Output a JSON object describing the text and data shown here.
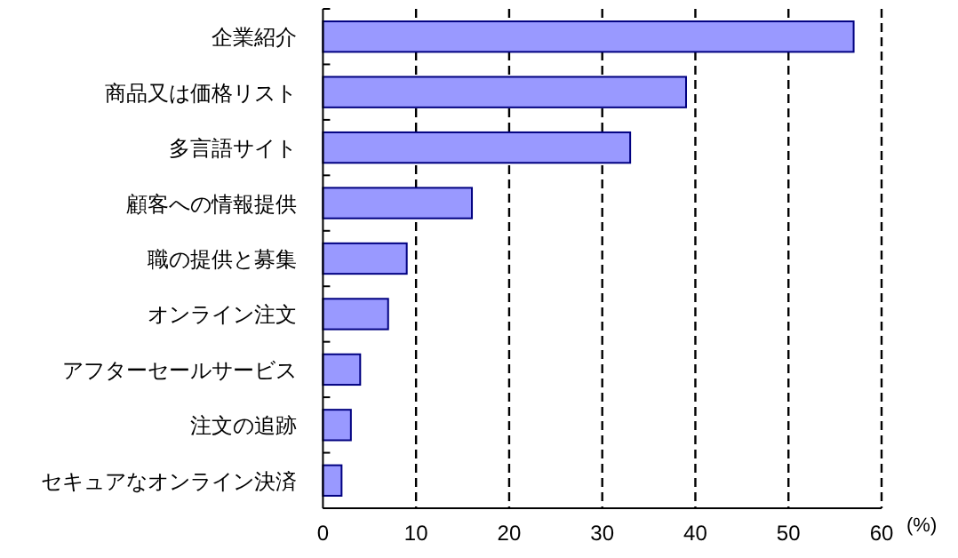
{
  "chart_data": {
    "type": "bar",
    "orientation": "horizontal",
    "xlabel": "(%)",
    "categories": [
      "企業紹介",
      "商品又は価格リスト",
      "多言語サイト",
      "顧客への情報提供",
      "職の提供と募集",
      "オンライン注文",
      "アフターセールサービス",
      "注文の追跡",
      "セキュアなオンライン決済"
    ],
    "values": [
      57,
      39,
      33,
      16,
      9,
      7,
      4,
      3,
      2
    ],
    "color": "#9999ff",
    "xlim": [
      0,
      60
    ],
    "xticks": [
      0,
      10,
      20,
      30,
      40,
      50,
      60
    ],
    "grid": "x"
  }
}
